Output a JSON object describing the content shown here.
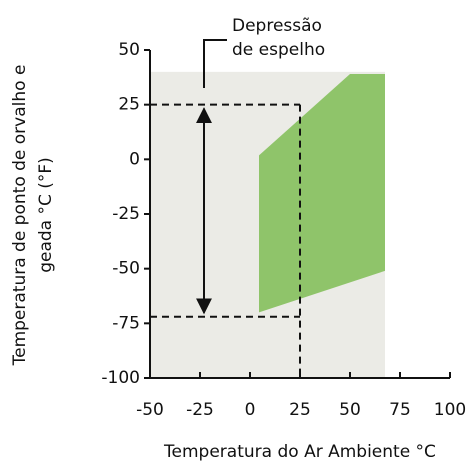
{
  "chart_data": {
    "type": "area",
    "xlabel": "Temperatura do Ar Ambiente °C",
    "ylabel": [
      "Temperatura de ponto de orvalho e",
      "geada °C (°F)"
    ],
    "xlim": [
      -50,
      100
    ],
    "ylim": [
      -100,
      50
    ],
    "xticks": [
      -50,
      -25,
      0,
      25,
      50,
      75,
      100
    ],
    "yticks": [
      -100,
      -75,
      -50,
      -25,
      0,
      25,
      50
    ],
    "background": {
      "x": [
        -50,
        67.5
      ],
      "y": [
        -100,
        40
      ],
      "color": "#ebebe6"
    },
    "region": {
      "x": [
        4.5,
        50,
        67.5,
        67.5,
        4.5
      ],
      "y": [
        1.8,
        39,
        39,
        -51,
        -70
      ],
      "color": "#8fc46a"
    },
    "reference_lines": {
      "mirror_temp": 25,
      "ambient": 25,
      "dew_point": -72
    },
    "arrow": {
      "x": -23,
      "y": [
        25,
        -72
      ]
    },
    "annotation": [
      "Depressão",
      "de espelho"
    ]
  }
}
